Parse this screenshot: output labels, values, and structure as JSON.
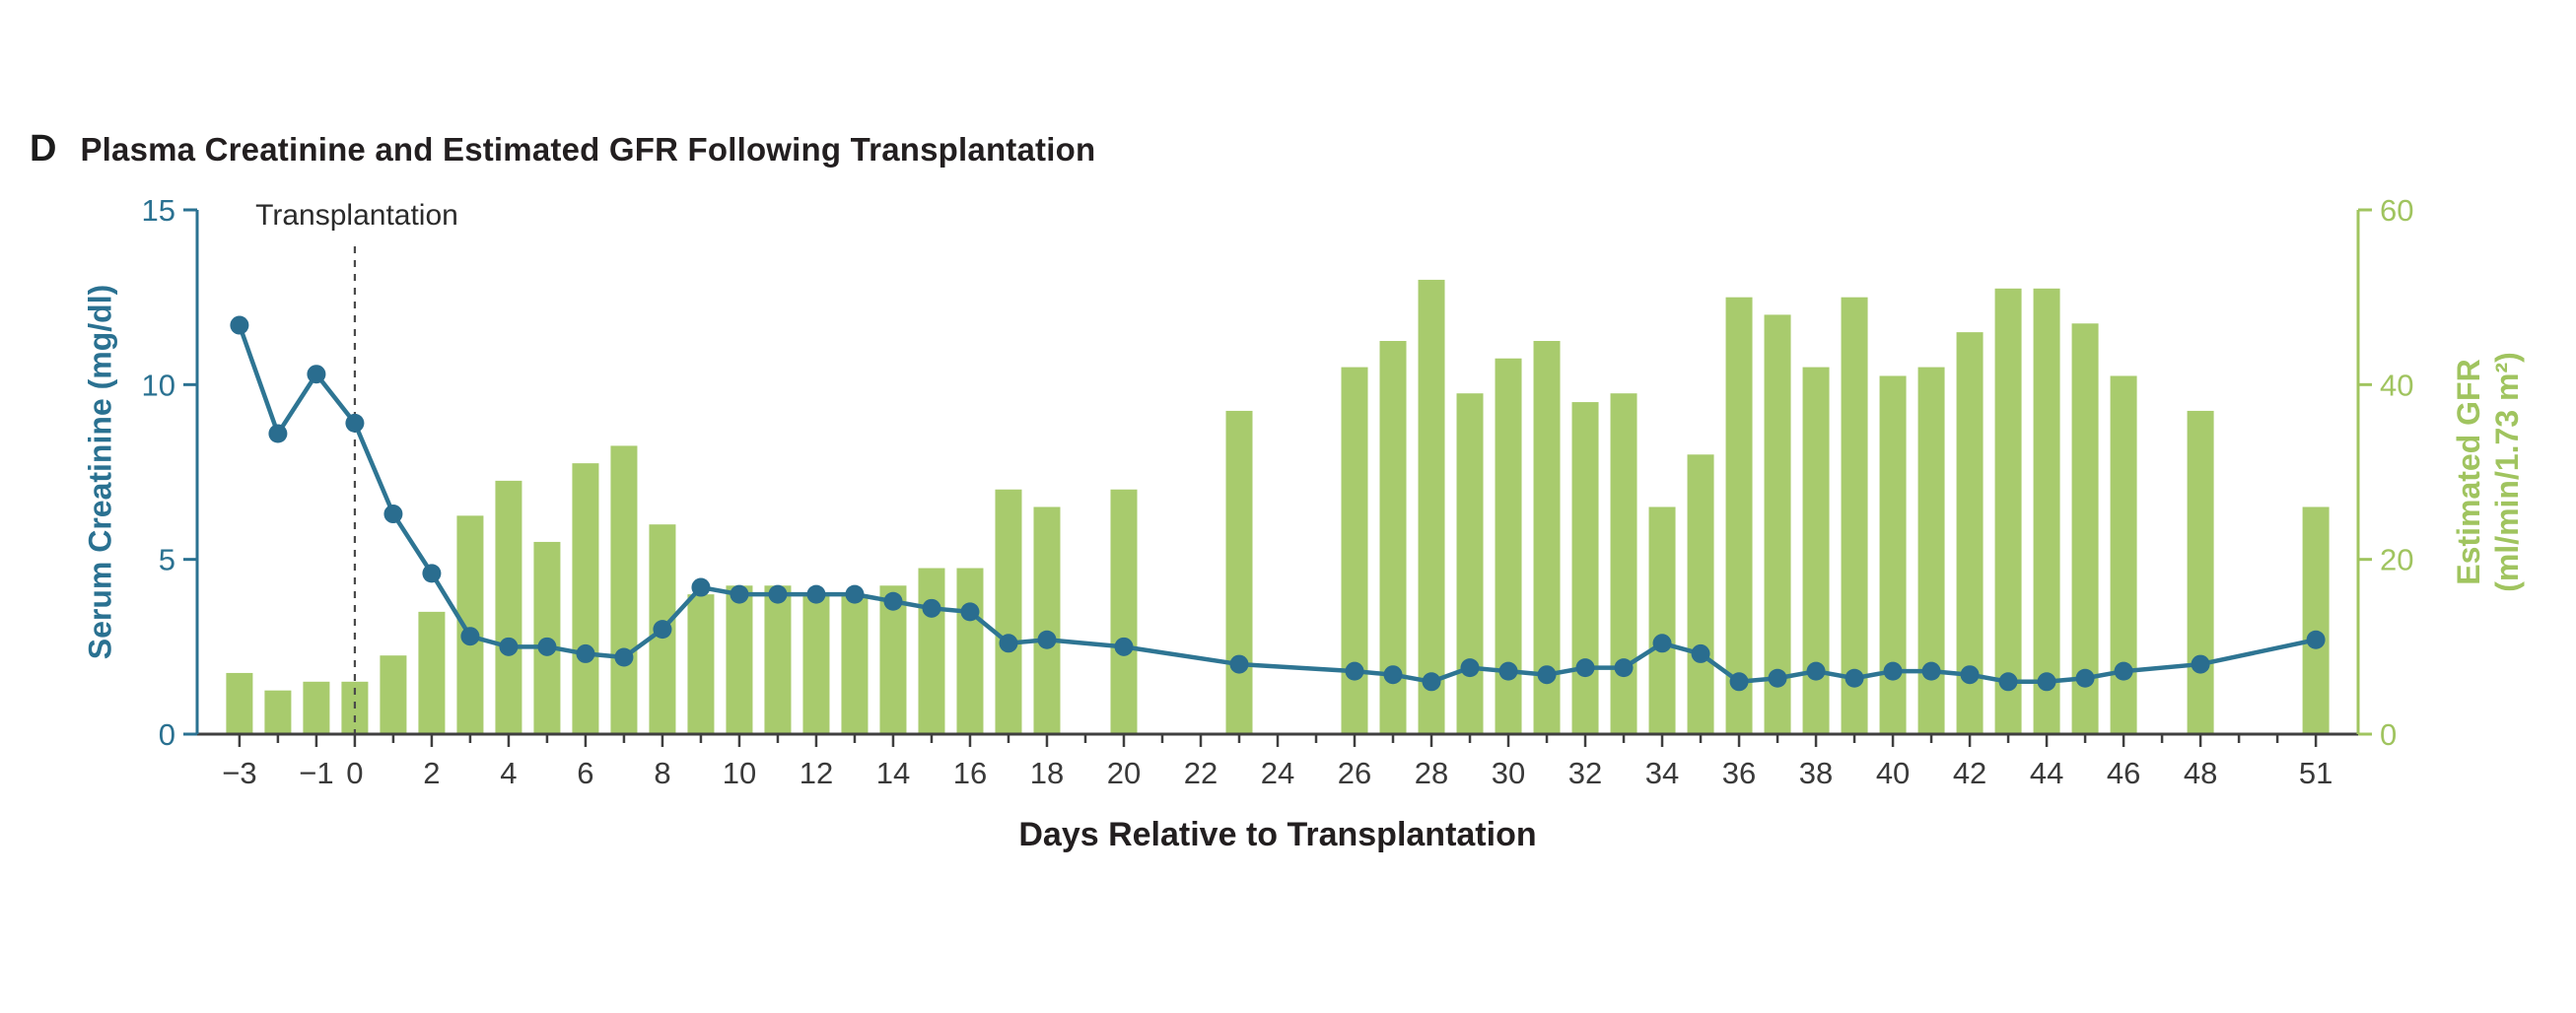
{
  "page": {
    "background_color": "#ffffff"
  },
  "panel": {
    "letter": "D",
    "title": "Plasma Creatinine and Estimated GFR Following Transplantation"
  },
  "chart_data": {
    "type": "bar",
    "subtype": "dual-axis bar + line",
    "title": "Plasma Creatinine and Estimated GFR Following Transplantation",
    "xlabel": "Days Relative to Transplantation",
    "grid": false,
    "legend": "none",
    "x_axis": {
      "lim": [
        -4.1,
        52.1
      ],
      "tick_values": [
        -3,
        -1,
        0,
        2,
        4,
        6,
        8,
        10,
        12,
        14,
        16,
        18,
        20,
        22,
        24,
        26,
        28,
        30,
        32,
        34,
        36,
        38,
        40,
        42,
        44,
        46,
        48,
        51
      ],
      "tick_labels": [
        "−3",
        "−1",
        "0",
        "2",
        "4",
        "6",
        "8",
        "10",
        "12",
        "14",
        "16",
        "18",
        "20",
        "22",
        "24",
        "26",
        "28",
        "30",
        "32",
        "34",
        "36",
        "38",
        "40",
        "42",
        "44",
        "46",
        "48",
        "51"
      ],
      "minor_tick_step": 1,
      "minor_tick_range": [
        -3,
        51
      ]
    },
    "y_left_axis": {
      "label": "Serum Creatinine (mg/dl)",
      "lim": [
        0,
        15
      ],
      "ticks": [
        0,
        5,
        10,
        15
      ],
      "color": "#2a7191"
    },
    "y_right_axis": {
      "label_line1": "Estimated GFR",
      "label_line2": "(ml/min/1.73 m²)",
      "lim": [
        0,
        60
      ],
      "ticks": [
        0,
        20,
        40,
        60
      ],
      "color": "#a0c45f"
    },
    "annotation": {
      "text": "Transplantation",
      "day": 0,
      "line_style": "dashed"
    },
    "series": [
      {
        "name": "Estimated GFR",
        "type": "bar",
        "axis": "right",
        "color": "#a8cb6d",
        "points": [
          [
            -3,
            7
          ],
          [
            -2,
            5
          ],
          [
            -1,
            6
          ],
          [
            0,
            6
          ],
          [
            1,
            9
          ],
          [
            2,
            14
          ],
          [
            3,
            25
          ],
          [
            4,
            29
          ],
          [
            5,
            22
          ],
          [
            6,
            31
          ],
          [
            7,
            33
          ],
          [
            8,
            24
          ],
          [
            9,
            16
          ],
          [
            10,
            17
          ],
          [
            11,
            17
          ],
          [
            12,
            16
          ],
          [
            13,
            16
          ],
          [
            14,
            17
          ],
          [
            15,
            19
          ],
          [
            16,
            19
          ],
          [
            17,
            28
          ],
          [
            18,
            26
          ],
          [
            20,
            28
          ],
          [
            23,
            37
          ],
          [
            26,
            42
          ],
          [
            27,
            45
          ],
          [
            28,
            52
          ],
          [
            29,
            39
          ],
          [
            30,
            43
          ],
          [
            31,
            45
          ],
          [
            32,
            38
          ],
          [
            33,
            39
          ],
          [
            34,
            26
          ],
          [
            35,
            32
          ],
          [
            36,
            50
          ],
          [
            37,
            48
          ],
          [
            38,
            42
          ],
          [
            39,
            50
          ],
          [
            40,
            41
          ],
          [
            41,
            42
          ],
          [
            42,
            46
          ],
          [
            43,
            51
          ],
          [
            44,
            51
          ],
          [
            45,
            47
          ],
          [
            46,
            41
          ],
          [
            48,
            37
          ],
          [
            51,
            26
          ]
        ]
      },
      {
        "name": "Serum Creatinine",
        "type": "line",
        "axis": "left",
        "color": "#2e7593",
        "marker_color": "#2a6d8f",
        "points": [
          [
            -3,
            11.7
          ],
          [
            -2,
            8.6
          ],
          [
            -1,
            10.3
          ],
          [
            0,
            8.9
          ],
          [
            1,
            6.3
          ],
          [
            2,
            4.6
          ],
          [
            3,
            2.8
          ],
          [
            4,
            2.5
          ],
          [
            5,
            2.5
          ],
          [
            6,
            2.3
          ],
          [
            7,
            2.2
          ],
          [
            8,
            3.0
          ],
          [
            9,
            4.2
          ],
          [
            10,
            4.0
          ],
          [
            11,
            4.0
          ],
          [
            12,
            4.0
          ],
          [
            13,
            4.0
          ],
          [
            14,
            3.8
          ],
          [
            15,
            3.6
          ],
          [
            16,
            3.5
          ],
          [
            17,
            2.6
          ],
          [
            18,
            2.7
          ],
          [
            20,
            2.5
          ],
          [
            23,
            2.0
          ],
          [
            26,
            1.8
          ],
          [
            27,
            1.7
          ],
          [
            28,
            1.5
          ],
          [
            29,
            1.9
          ],
          [
            30,
            1.8
          ],
          [
            31,
            1.7
          ],
          [
            32,
            1.9
          ],
          [
            33,
            1.9
          ],
          [
            34,
            2.6
          ],
          [
            35,
            2.3
          ],
          [
            36,
            1.5
          ],
          [
            37,
            1.6
          ],
          [
            38,
            1.8
          ],
          [
            39,
            1.6
          ],
          [
            40,
            1.8
          ],
          [
            41,
            1.8
          ],
          [
            42,
            1.7
          ],
          [
            43,
            1.5
          ],
          [
            44,
            1.5
          ],
          [
            45,
            1.6
          ],
          [
            46,
            1.8
          ],
          [
            48,
            2.0
          ],
          [
            51,
            2.7
          ]
        ]
      }
    ]
  }
}
